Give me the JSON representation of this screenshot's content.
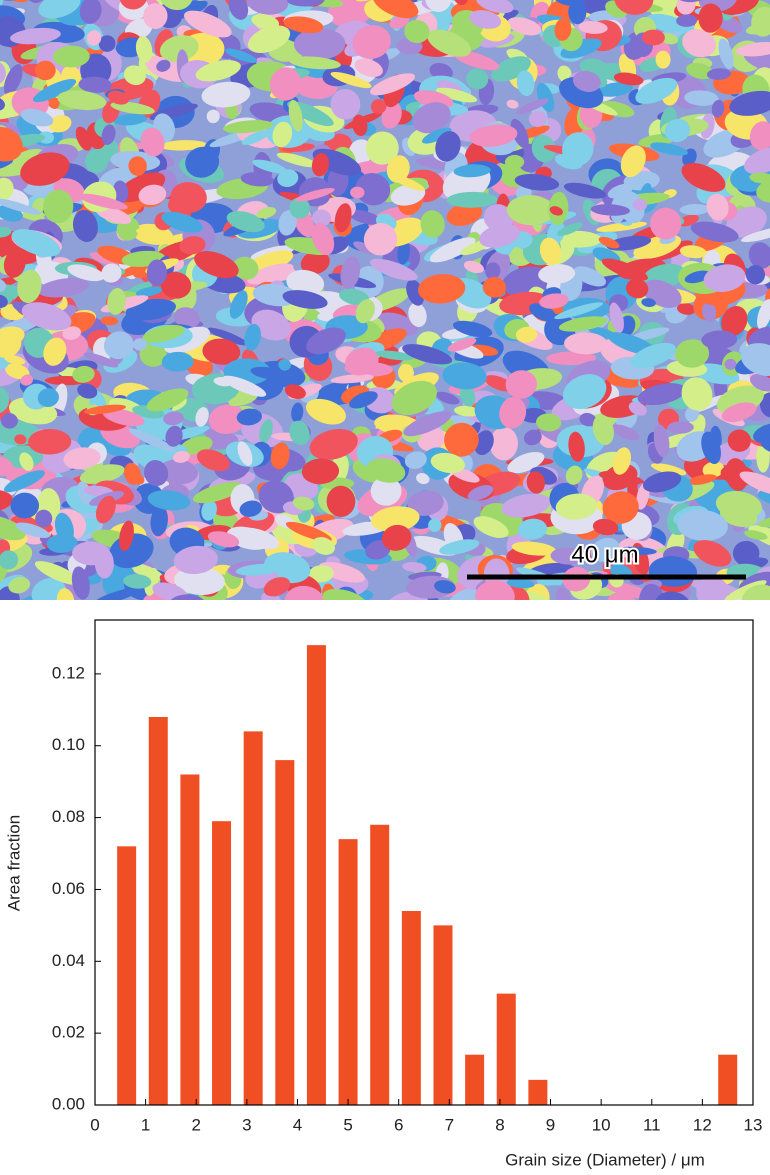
{
  "micrograph": {
    "scale_bar": "40 μm"
  },
  "chart_data": {
    "type": "bar",
    "xlabel": "Grain size (Diameter) / μm",
    "ylabel": "Area fraction",
    "x": [
      0.625,
      1.25,
      1.875,
      2.5,
      3.125,
      3.75,
      4.375,
      5,
      5.625,
      6.25,
      6.875,
      7.5,
      8.125,
      8.75,
      12.5
    ],
    "values": [
      0.072,
      0.108,
      0.092,
      0.079,
      0.104,
      0.096,
      0.128,
      0.074,
      0.078,
      0.054,
      0.05,
      0.014,
      0.031,
      0.007,
      0.014
    ],
    "color": "#f04e23",
    "xlim": [
      0,
      13
    ],
    "xticks": [
      0,
      1,
      2,
      3,
      4,
      5,
      6,
      7,
      8,
      9,
      10,
      11,
      12,
      13
    ],
    "ylim": [
      0,
      0.135
    ],
    "yticks": [
      {
        "value": 0,
        "label": "0.00"
      },
      0.02,
      0.04,
      0.06,
      0.08,
      {
        "value": 0.1,
        "label": "0.10"
      },
      0.12
    ]
  }
}
